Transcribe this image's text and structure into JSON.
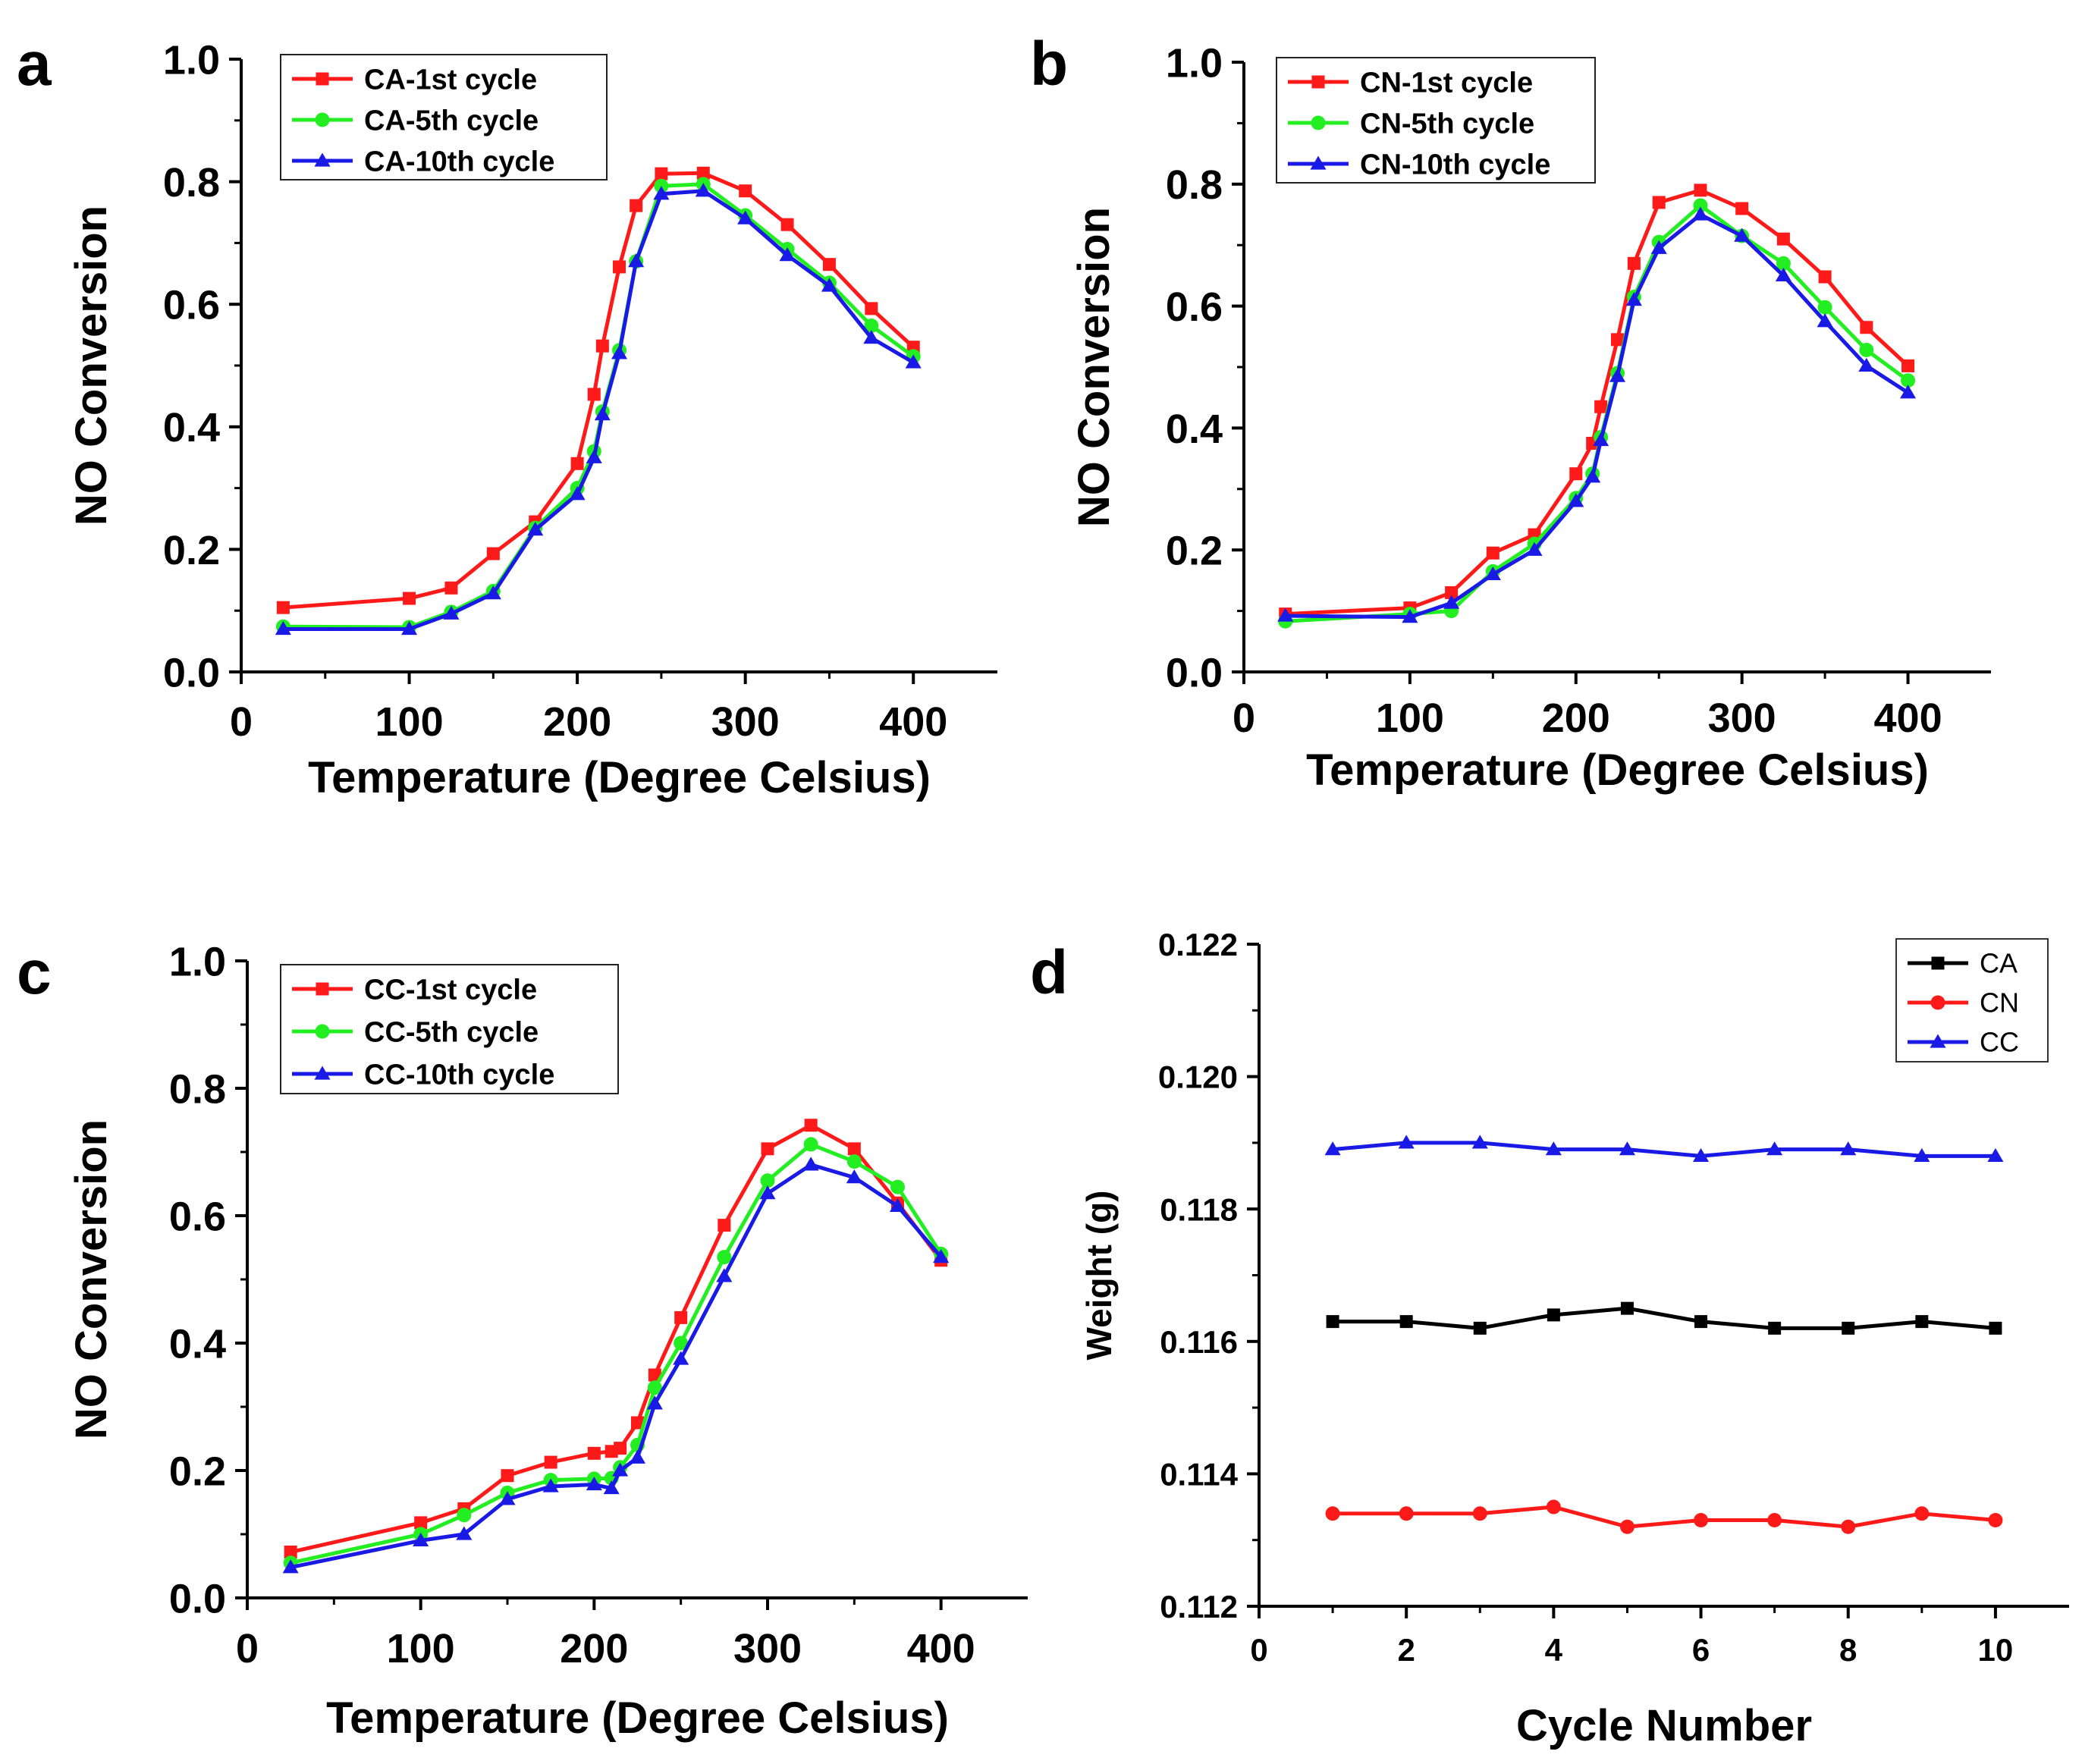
{
  "figure": {
    "panels": [
      "a",
      "b",
      "c",
      "d"
    ]
  },
  "colors": {
    "red": "#ff1a1a",
    "green": "#22ee22",
    "blue": "#1a1ae6",
    "black": "#000000"
  },
  "chart_data": [
    {
      "id": "a",
      "panel_label": "a",
      "type": "line",
      "xlabel": "Temperature (Degree Celsius)",
      "ylabel": "NO Conversion",
      "xlim": [
        0,
        450
      ],
      "ylim": [
        0,
        1.0
      ],
      "xticks": [
        0,
        100,
        200,
        300,
        400
      ],
      "yticks": [
        0.0,
        0.2,
        0.4,
        0.6,
        0.8,
        1.0
      ],
      "ytick_format": 1,
      "legend_position": "top-left",
      "series": [
        {
          "name": "CA-1st cycle",
          "color": "#ff1a1a",
          "marker": "square",
          "x": [
            25,
            100,
            125,
            150,
            175,
            200,
            210,
            215,
            225,
            235,
            250,
            275,
            300,
            325,
            350,
            375,
            400
          ],
          "y": [
            0.105,
            0.12,
            0.137,
            0.193,
            0.245,
            0.34,
            0.453,
            0.532,
            0.661,
            0.761,
            0.813,
            0.814,
            0.785,
            0.73,
            0.665,
            0.593,
            0.53
          ]
        },
        {
          "name": "CA-5th cycle",
          "color": "#22ee22",
          "marker": "circle",
          "x": [
            25,
            100,
            125,
            150,
            175,
            200,
            210,
            215,
            225,
            235,
            250,
            275,
            300,
            325,
            350,
            375,
            400
          ],
          "y": [
            0.074,
            0.073,
            0.098,
            0.132,
            0.235,
            0.3,
            0.36,
            0.425,
            0.525,
            0.67,
            0.793,
            0.796,
            0.745,
            0.69,
            0.635,
            0.565,
            0.515
          ]
        },
        {
          "name": "CA-10th cycle",
          "color": "#1a1ae6",
          "marker": "triangle",
          "x": [
            25,
            100,
            125,
            150,
            175,
            200,
            210,
            215,
            225,
            235,
            250,
            275,
            300,
            325,
            350,
            375,
            400
          ],
          "y": [
            0.07,
            0.07,
            0.095,
            0.128,
            0.232,
            0.29,
            0.35,
            0.42,
            0.52,
            0.67,
            0.78,
            0.785,
            0.74,
            0.68,
            0.63,
            0.545,
            0.505
          ]
        }
      ]
    },
    {
      "id": "b",
      "panel_label": "b",
      "type": "line",
      "xlabel": "Temperature (Degree Celsius)",
      "ylabel": "NO Conversion",
      "xlim": [
        0,
        450
      ],
      "ylim": [
        0,
        1.0
      ],
      "xticks": [
        0,
        100,
        200,
        300,
        400
      ],
      "yticks": [
        0.0,
        0.2,
        0.4,
        0.6,
        0.8,
        1.0
      ],
      "ytick_format": 1,
      "legend_position": "top-left",
      "series": [
        {
          "name": "CN-1st cycle",
          "color": "#ff1a1a",
          "marker": "square",
          "x": [
            25,
            100,
            125,
            150,
            175,
            200,
            210,
            215,
            225,
            235,
            250,
            275,
            300,
            325,
            350,
            375,
            400
          ],
          "y": [
            0.095,
            0.105,
            0.13,
            0.195,
            0.225,
            0.325,
            0.375,
            0.435,
            0.545,
            0.67,
            0.77,
            0.79,
            0.76,
            0.71,
            0.648,
            0.565,
            0.502
          ]
        },
        {
          "name": "CN-5th cycle",
          "color": "#22ee22",
          "marker": "circle",
          "x": [
            25,
            100,
            125,
            150,
            175,
            200,
            210,
            215,
            225,
            235,
            250,
            275,
            300,
            325,
            350,
            375,
            400
          ],
          "y": [
            0.083,
            0.095,
            0.1,
            0.165,
            0.21,
            0.285,
            0.325,
            0.385,
            0.49,
            0.615,
            0.705,
            0.765,
            0.715,
            0.67,
            0.598,
            0.528,
            0.478
          ]
        },
        {
          "name": "CN-10th cycle",
          "color": "#1a1ae6",
          "marker": "triangle",
          "x": [
            25,
            100,
            125,
            150,
            175,
            200,
            210,
            215,
            225,
            235,
            250,
            275,
            300,
            325,
            350,
            375,
            400
          ],
          "y": [
            0.092,
            0.09,
            0.113,
            0.16,
            0.2,
            0.28,
            0.32,
            0.38,
            0.485,
            0.61,
            0.695,
            0.75,
            0.715,
            0.65,
            0.575,
            0.502,
            0.458
          ]
        }
      ]
    },
    {
      "id": "c",
      "panel_label": "c",
      "type": "line",
      "xlabel": "Temperature (Degree Celsius)",
      "ylabel": "NO Conversion",
      "xlim": [
        0,
        450
      ],
      "ylim": [
        0,
        1.0
      ],
      "xticks": [
        0,
        100,
        200,
        300,
        400
      ],
      "yticks": [
        0.0,
        0.2,
        0.4,
        0.6,
        0.8,
        1.0
      ],
      "ytick_format": 1,
      "legend_position": "top-left",
      "series": [
        {
          "name": "CC-1st cycle",
          "color": "#ff1a1a",
          "marker": "square",
          "x": [
            25,
            100,
            125,
            150,
            175,
            200,
            210,
            215,
            225,
            235,
            250,
            275,
            300,
            325,
            350,
            375,
            400
          ],
          "y": [
            0.072,
            0.118,
            0.14,
            0.192,
            0.213,
            0.227,
            0.23,
            0.235,
            0.275,
            0.35,
            0.44,
            0.585,
            0.705,
            0.742,
            0.705,
            0.62,
            0.53
          ]
        },
        {
          "name": "CC-5th cycle",
          "color": "#22ee22",
          "marker": "circle",
          "x": [
            25,
            100,
            125,
            150,
            175,
            200,
            210,
            215,
            225,
            235,
            250,
            275,
            300,
            325,
            350,
            375,
            400
          ],
          "y": [
            0.055,
            0.1,
            0.13,
            0.165,
            0.185,
            0.187,
            0.188,
            0.205,
            0.24,
            0.33,
            0.4,
            0.535,
            0.655,
            0.712,
            0.685,
            0.645,
            0.54
          ]
        },
        {
          "name": "CC-10th cycle",
          "color": "#1a1ae6",
          "marker": "triangle",
          "x": [
            25,
            100,
            125,
            150,
            175,
            200,
            210,
            215,
            225,
            235,
            250,
            275,
            300,
            325,
            350,
            375,
            400
          ],
          "y": [
            0.048,
            0.09,
            0.1,
            0.155,
            0.175,
            0.178,
            0.172,
            0.2,
            0.22,
            0.305,
            0.375,
            0.505,
            0.635,
            0.68,
            0.66,
            0.615,
            0.535
          ]
        }
      ]
    },
    {
      "id": "d",
      "panel_label": "d",
      "type": "line",
      "xlabel": "Cycle Number",
      "ylabel": "Weight (g)",
      "xlim": [
        0,
        11
      ],
      "ylim": [
        0.112,
        0.122
      ],
      "xticks": [
        0,
        2,
        4,
        6,
        8,
        10
      ],
      "yticks": [
        0.112,
        0.114,
        0.116,
        0.118,
        0.12,
        0.122
      ],
      "ytick_format": 3,
      "legend_position": "top-right",
      "series": [
        {
          "name": "CA",
          "color": "#000000",
          "marker": "square",
          "x": [
            1,
            2,
            3,
            4,
            5,
            6,
            7,
            8,
            9,
            10
          ],
          "y": [
            0.1163,
            0.1163,
            0.1162,
            0.1164,
            0.1165,
            0.1163,
            0.1162,
            0.1162,
            0.1163,
            0.1162
          ]
        },
        {
          "name": "CN",
          "color": "#ff1a1a",
          "marker": "circle",
          "x": [
            1,
            2,
            3,
            4,
            5,
            6,
            7,
            8,
            9,
            10
          ],
          "y": [
            0.1134,
            0.1134,
            0.1134,
            0.1135,
            0.1132,
            0.1133,
            0.1133,
            0.1132,
            0.1134,
            0.1133
          ]
        },
        {
          "name": "CC",
          "color": "#1a1ae6",
          "marker": "triangle",
          "x": [
            1,
            2,
            3,
            4,
            5,
            6,
            7,
            8,
            9,
            10
          ],
          "y": [
            0.1189,
            0.119,
            0.119,
            0.1189,
            0.1189,
            0.1188,
            0.1189,
            0.1189,
            0.1188,
            0.1188
          ]
        }
      ]
    }
  ]
}
